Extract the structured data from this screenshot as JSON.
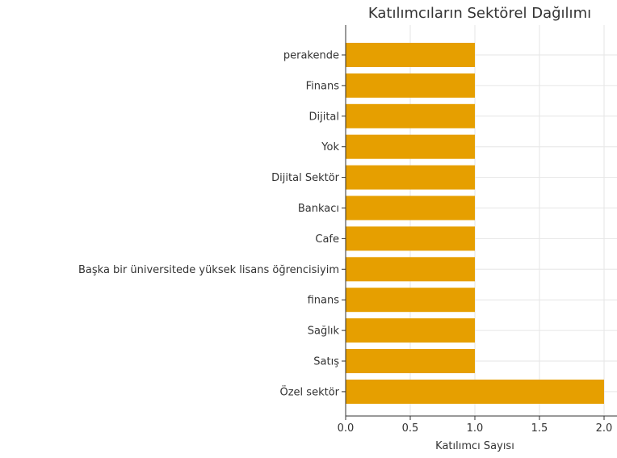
{
  "chart_data": {
    "type": "bar",
    "orientation": "horizontal",
    "title": "Katılımcıların Sektörel Dağılımı",
    "xlabel": "Katılımcı Sayısı",
    "ylabel": "",
    "categories": [
      "perakende",
      "Finans",
      "Dijital",
      "Yok",
      "Dijital Sektör",
      "Bankacı",
      "Cafe",
      "Başka bir üniversitede yüksek lisans öğrencisiyim",
      "finans",
      "Sağlık",
      "Satış",
      "Özel sektör"
    ],
    "values": [
      1,
      1,
      1,
      1,
      1,
      1,
      1,
      1,
      1,
      1,
      1,
      2
    ],
    "xlim": [
      0,
      2.0
    ],
    "xticks": [
      "0.0",
      "0.5",
      "1.0",
      "1.5",
      "2.0"
    ],
    "grid": true,
    "bar_color": "#E69F00"
  }
}
